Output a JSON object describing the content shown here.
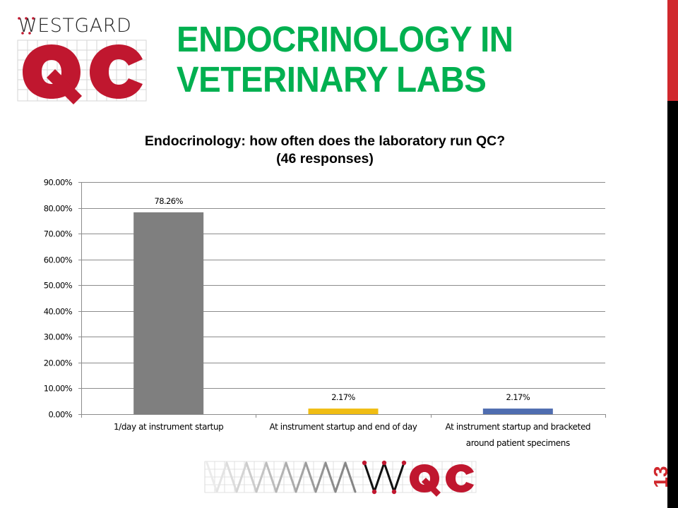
{
  "slide": {
    "title_line1": "ENDOCRINOLOGY IN",
    "title_line2": "VETERINARY LABS",
    "page_number": "13",
    "title_color": "#00b050",
    "accent_red": "#d0282d"
  },
  "logo_top": {
    "wordmark": "WESTGARD",
    "letters": "QC",
    "color": "#c0172f"
  },
  "logo_bottom": {
    "letters": "QC",
    "color": "#c0172f"
  },
  "chart_data": {
    "type": "bar",
    "title": "Endocrinology: how often does the laboratory run QC?",
    "subtitle": "(46 responses)",
    "categories": [
      [
        "1/day at instrument startup"
      ],
      [
        "At instrument startup and end of day"
      ],
      [
        "At instrument startup and bracketed",
        "around patient specimens"
      ]
    ],
    "category_labels": [
      "1/day at instrument startup",
      "At instrument startup and end of day",
      "At instrument startup and bracketed around patient specimens"
    ],
    "values": [
      78.26,
      2.17,
      2.17
    ],
    "data_labels": [
      "78.26%",
      "2.17%",
      "2.17%"
    ],
    "colors": [
      "#7f7f7f",
      "#f0bd13",
      "#4f6db0"
    ],
    "xlabel": "",
    "ylabel": "",
    "ylim": [
      0,
      90
    ],
    "yticks": [
      0,
      10,
      20,
      30,
      40,
      50,
      60,
      70,
      80,
      90
    ],
    "ytick_labels": [
      "0.00%",
      "10.00%",
      "20.00%",
      "30.00%",
      "40.00%",
      "50.00%",
      "60.00%",
      "70.00%",
      "80.00%",
      "90.00%"
    ],
    "grid": true,
    "legend": "none"
  }
}
